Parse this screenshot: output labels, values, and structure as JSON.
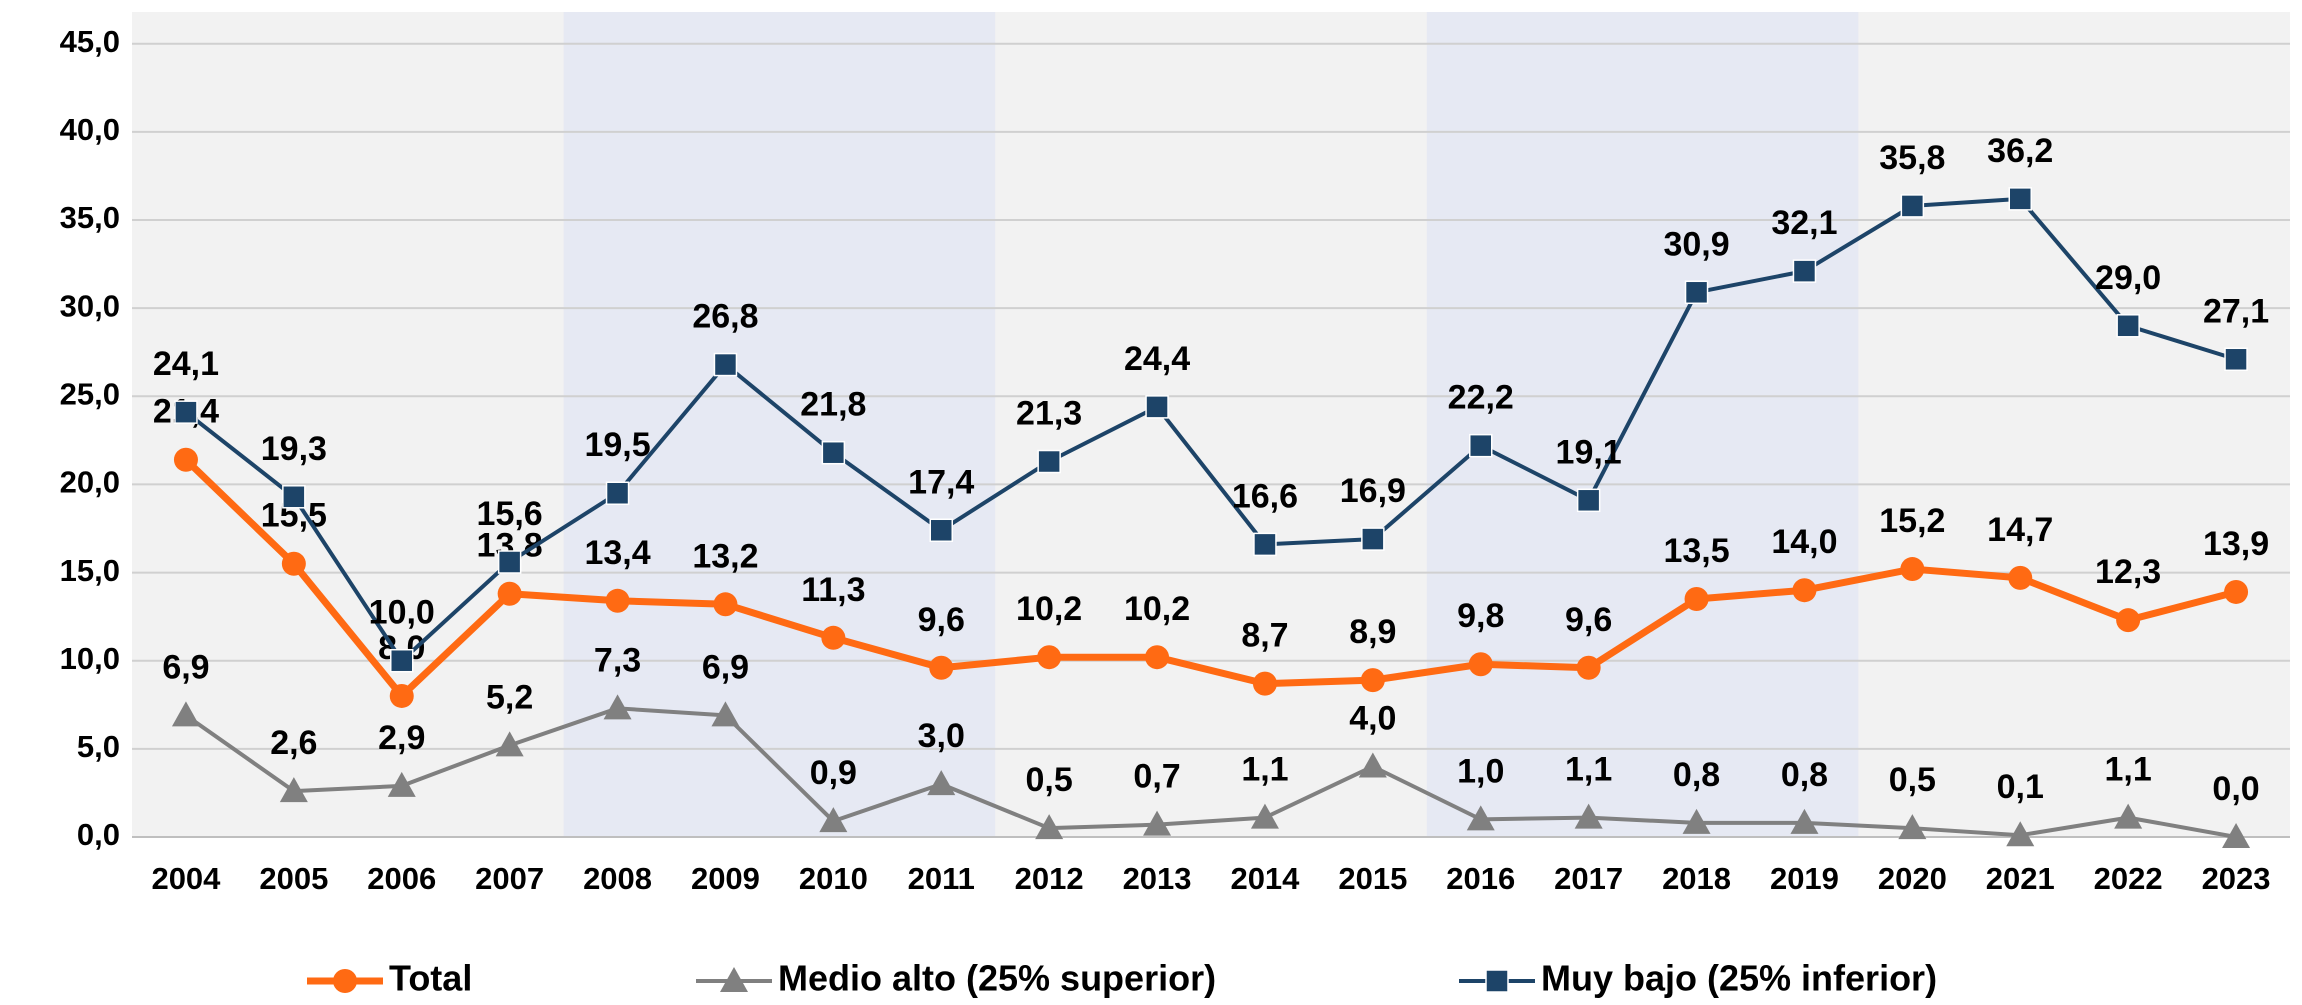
{
  "chart_data": {
    "type": "line",
    "categories": [
      "2004",
      "2005",
      "2006",
      "2007",
      "2008",
      "2009",
      "2010",
      "2011",
      "2012",
      "2013",
      "2014",
      "2015",
      "2016",
      "2017",
      "2018",
      "2019",
      "2020",
      "2021",
      "2022",
      "2023"
    ],
    "series": [
      {
        "name": "Total",
        "color": "#ff6a13",
        "marker": "circle",
        "values": [
          21.4,
          15.5,
          8.0,
          13.8,
          13.4,
          13.2,
          11.3,
          9.6,
          10.2,
          10.2,
          8.7,
          8.9,
          9.8,
          9.6,
          13.5,
          14.0,
          15.2,
          14.7,
          12.3,
          13.9
        ],
        "value_labels": [
          "21,4",
          "15,5",
          "8,0",
          "13,8",
          "13,4",
          "13,2",
          "11,3",
          "9,6",
          "10,2",
          "10,2",
          "8,7",
          "8,9",
          "9,8",
          "9,6",
          "13,5",
          "14,0",
          "15,2",
          "14,7",
          "12,3",
          "13,9"
        ]
      },
      {
        "name": "Medio alto (25% superior)",
        "color": "#808080",
        "marker": "triangle",
        "values": [
          6.9,
          2.6,
          2.9,
          5.2,
          7.3,
          6.9,
          0.9,
          3.0,
          0.5,
          0.7,
          1.1,
          4.0,
          1.0,
          1.1,
          0.8,
          0.8,
          0.5,
          0.1,
          1.1,
          0.0
        ],
        "value_labels": [
          "6,9",
          "2,6",
          "2,9",
          "5,2",
          "7,3",
          "6,9",
          "0,9",
          "3,0",
          "0,5",
          "0,7",
          "1,1",
          "4,0",
          "1,0",
          "1,1",
          "0,8",
          "0,8",
          "0,5",
          "0,1",
          "1,1",
          "0,0"
        ]
      },
      {
        "name": "Muy bajo (25% inferior)",
        "color": "#1d4468",
        "marker": "square",
        "values": [
          24.1,
          19.3,
          10.0,
          15.6,
          19.5,
          26.8,
          21.8,
          17.4,
          21.3,
          24.4,
          16.6,
          16.9,
          22.2,
          19.1,
          30.9,
          32.1,
          35.8,
          36.2,
          29.0,
          27.1
        ],
        "value_labels": [
          "24,1",
          "19,3",
          "10,0",
          "15,6",
          "19,5",
          "26,8",
          "21,8",
          "17,4",
          "21,3",
          "24,4",
          "16,6",
          "16,9",
          "22,2",
          "19,1",
          "30,9",
          "32,1",
          "35,8",
          "36,2",
          "29,0",
          "27,1"
        ]
      }
    ],
    "ylim": [
      0,
      46.8
    ],
    "yticks": [
      {
        "value": 0,
        "label": "0,0"
      },
      {
        "value": 5,
        "label": "5,0"
      },
      {
        "value": 10,
        "label": "10,0"
      },
      {
        "value": 15,
        "label": "15,0"
      },
      {
        "value": 20,
        "label": "20,0"
      },
      {
        "value": 25,
        "label": "25,0"
      },
      {
        "value": 30,
        "label": "30,0"
      },
      {
        "value": 35,
        "label": "35,0"
      },
      {
        "value": 40,
        "label": "40,0"
      },
      {
        "value": 45,
        "label": "45,0"
      }
    ],
    "grid": true,
    "legend": "bottom"
  }
}
